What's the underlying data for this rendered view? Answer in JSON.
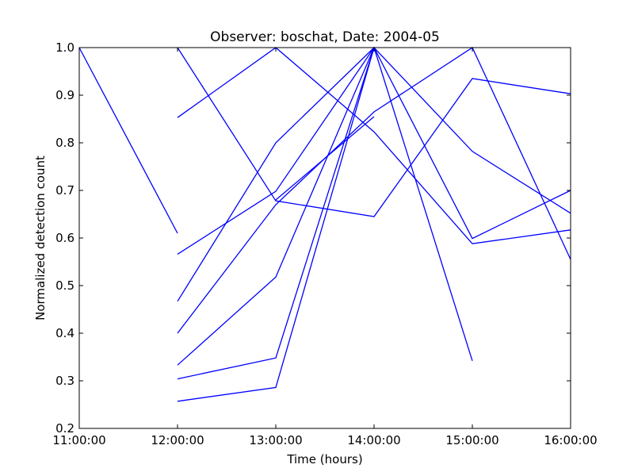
{
  "chart_data": {
    "type": "line",
    "title": "Observer: boschat, Date: 2004-05",
    "xlabel": "Time (hours)",
    "ylabel": "Normalized detection count",
    "x_tick_labels": [
      "11:00:00",
      "12:00:00",
      "13:00:00",
      "14:00:00",
      "15:00:00",
      "16:00:00"
    ],
    "y_tick_labels": [
      "0.2",
      "0.3",
      "0.4",
      "0.5",
      "0.6",
      "0.7",
      "0.8",
      "0.9",
      "1.0"
    ],
    "xlim": [
      "11:00:00",
      "16:00:00"
    ],
    "ylim": [
      0.2,
      1.0
    ],
    "grid": false,
    "color": "#0000ff",
    "series": [
      {
        "x": [
          "11:00:00",
          "12:00:00"
        ],
        "values": [
          1.0,
          0.61
        ]
      },
      {
        "x": [
          "12:00:00",
          "13:00:00",
          "14:00:00",
          "15:00:00",
          "16:00:00"
        ],
        "values": [
          1.0,
          0.678,
          0.645,
          0.935,
          0.903
        ]
      },
      {
        "x": [
          "12:00:00",
          "13:00:00",
          "14:00:00",
          "15:00:00",
          "16:00:00"
        ],
        "values": [
          0.853,
          1.0,
          0.823,
          0.588,
          0.617
        ]
      },
      {
        "x": [
          "12:00:00",
          "13:00:00",
          "14:00:00",
          "15:00:00",
          "16:00:00"
        ],
        "values": [
          0.566,
          0.698,
          1.0,
          0.599,
          0.7
        ]
      },
      {
        "x": [
          "12:00:00",
          "13:00:00",
          "14:00:00",
          "15:00:00"
        ],
        "values": [
          0.467,
          0.8,
          1.0,
          0.342
        ]
      },
      {
        "x": [
          "12:00:00",
          "13:00:00",
          "14:00:00",
          "15:00:00",
          "16:00:00"
        ],
        "values": [
          0.4,
          0.67,
          0.865,
          1.0,
          0.555
        ]
      },
      {
        "x": [
          "12:00:00",
          "13:00:00",
          "14:00:00",
          "15:00:00",
          "16:00:00"
        ],
        "values": [
          0.333,
          0.518,
          1.0,
          0.782,
          0.652
        ]
      },
      {
        "x": [
          "12:00:00",
          "13:00:00",
          "14:00:00"
        ],
        "values": [
          0.304,
          0.348,
          1.0
        ]
      },
      {
        "x": [
          "12:00:00",
          "13:00:00",
          "14:00:00"
        ],
        "values": [
          0.257,
          0.286,
          1.0
        ]
      },
      {
        "x": [
          "13:00:00",
          "14:00:00"
        ],
        "values": [
          0.68,
          0.855
        ]
      }
    ]
  }
}
